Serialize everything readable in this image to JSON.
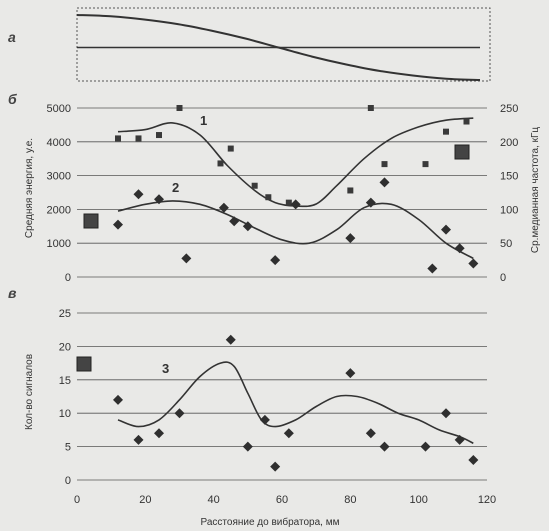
{
  "chart_data": [
    {
      "type": "line",
      "panel_label": "а",
      "series": [
        {
          "x": [
            0,
            10,
            20,
            30,
            40,
            50,
            60,
            70,
            80,
            90,
            100,
            110,
            120
          ],
          "y": [
            1.0,
            0.98,
            0.93,
            0.86,
            0.76,
            0.64,
            0.5,
            0.36,
            0.24,
            0.14,
            0.07,
            0.02,
            0.0
          ]
        },
        {
          "x": [
            0,
            120
          ],
          "y": [
            0.5,
            0.5
          ]
        }
      ],
      "xlim": [
        0,
        120
      ]
    },
    {
      "type": "scatter",
      "panel_label": "б",
      "ylabel": "Средняя энергия, у.е.",
      "y2label": "Ср.медианная частота, кГц",
      "ylim": [
        0,
        5000
      ],
      "y2lim": [
        0,
        250
      ],
      "yticks": [
        "0",
        "1000",
        "2000",
        "3000",
        "4000",
        "5000"
      ],
      "y2ticks": [
        "0",
        "50",
        "100",
        "150",
        "200",
        "250"
      ],
      "xlim": [
        0,
        120
      ],
      "curve_labels": [
        "1",
        "2"
      ],
      "series": [
        {
          "label": "1",
          "marker": "square",
          "axis": "right",
          "x": [
            12,
            18,
            24,
            30,
            42,
            45,
            52,
            56,
            62,
            80,
            86,
            90,
            102,
            108,
            114
          ],
          "y": [
            205,
            205,
            210,
            250,
            168,
            190,
            135,
            118,
            110,
            128,
            250,
            167,
            167,
            215,
            230
          ],
          "fit_x": [
            12,
            20,
            28,
            36,
            44,
            52,
            58,
            64,
            70,
            76,
            84,
            92,
            100,
            108,
            116
          ],
          "fit_y": [
            215,
            218,
            228,
            210,
            165,
            128,
            110,
            105,
            108,
            135,
            175,
            205,
            222,
            232,
            235
          ]
        },
        {
          "label": "2",
          "marker": "diamond",
          "axis": "left",
          "x": [
            12,
            18,
            24,
            32,
            43,
            46,
            50,
            58,
            64,
            80,
            86,
            90,
            104,
            108,
            112,
            116
          ],
          "y": [
            1550,
            2450,
            2300,
            550,
            2050,
            1650,
            1500,
            500,
            2150,
            1150,
            2200,
            2800,
            250,
            1400,
            850,
            400
          ],
          "fit_x": [
            12,
            20,
            28,
            36,
            44,
            52,
            60,
            68,
            76,
            84,
            92,
            100,
            108,
            116
          ],
          "fit_y": [
            1950,
            2150,
            2250,
            2150,
            1850,
            1450,
            1100,
            1000,
            1400,
            2050,
            2150,
            1700,
            1000,
            550
          ]
        }
      ]
    },
    {
      "type": "scatter",
      "panel_label": "в",
      "ylabel": "Кол-во сигналов",
      "xlabel": "Расстояние до вибратора, мм",
      "ylim": [
        0,
        25
      ],
      "xlim": [
        0,
        120
      ],
      "yticks": [
        "0",
        "5",
        "10",
        "15",
        "20",
        "25"
      ],
      "xticks": [
        "0",
        "20",
        "40",
        "60",
        "80",
        "100",
        "120"
      ],
      "curve_labels": [
        "3"
      ],
      "series": [
        {
          "label": "3",
          "marker": "diamond",
          "x": [
            12,
            18,
            24,
            30,
            45,
            50,
            55,
            58,
            62,
            80,
            86,
            90,
            102,
            108,
            112,
            116
          ],
          "y": [
            12,
            6,
            7,
            10,
            21,
            5,
            9,
            2,
            7,
            16,
            7,
            5,
            5,
            10,
            6,
            3
          ],
          "fit_x": [
            12,
            18,
            24,
            30,
            36,
            42,
            46,
            50,
            54,
            58,
            64,
            70,
            76,
            82,
            88,
            94,
            100,
            106,
            112,
            116
          ],
          "fit_y": [
            9,
            8,
            9,
            12,
            15.5,
            17.5,
            17,
            13,
            9,
            8,
            9,
            11,
            12.5,
            12.5,
            11.5,
            10,
            9,
            7.5,
            6.5,
            5.5
          ]
        }
      ]
    }
  ]
}
